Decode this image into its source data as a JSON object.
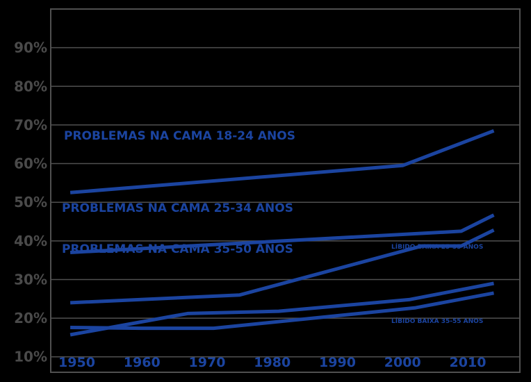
{
  "chart_data": {
    "type": "line",
    "title": "",
    "xlabel": "",
    "ylabel": "",
    "xlim": [
      1946,
      2018
    ],
    "ylim": [
      6,
      100
    ],
    "x_ticks": [
      "1950",
      "1960",
      "1970",
      "1980",
      "1990",
      "2000",
      "2010"
    ],
    "y_ticks": [
      "10%",
      "20%",
      "30%",
      "40%",
      "50%",
      "60%",
      "70%",
      "80%",
      "90%"
    ],
    "grid": true,
    "colors": {
      "background": "#000000",
      "line": "#1b44a0",
      "grid": "#505050",
      "ytick": "#4a4a4a"
    },
    "series": [
      {
        "name": "PROBLEMAS NA CAMA 18-24 ANOS",
        "points": [
          [
            1949,
            52.5
          ],
          [
            2000,
            59.5
          ],
          [
            2014,
            68.5
          ]
        ]
      },
      {
        "name": "PROBLEMAS NA CAMA 25-34 ANOS",
        "points": [
          [
            1949,
            37
          ],
          [
            2009,
            42.5
          ],
          [
            2014,
            46.7
          ]
        ]
      },
      {
        "name": "PROBLEMAS NA CAMA 35-50 ANOS",
        "points": [
          [
            1949,
            24
          ],
          [
            1975,
            26
          ],
          [
            2003,
            38.7
          ],
          [
            2009,
            38.7
          ],
          [
            2014,
            42.8
          ]
        ]
      },
      {
        "name": "LÍBIDO BAIXA 25-35 ANOS",
        "points": [
          [
            1949,
            15.7
          ],
          [
            1967,
            21.2
          ],
          [
            1981,
            21.8
          ],
          [
            2001,
            24.8
          ],
          [
            2014,
            29
          ]
        ]
      },
      {
        "name": "LÍBIDO BAIXA 35-55 ANOS",
        "points": [
          [
            1949,
            17.6
          ],
          [
            1960,
            17.4
          ],
          [
            1971,
            17.4
          ],
          [
            2002,
            22.7
          ],
          [
            2014,
            26.5
          ]
        ]
      }
    ]
  },
  "labels": {
    "label_1824": "PROBLEMAS NA CAMA 18-24 ANOS",
    "label_2534": "PROBLEMAS NA CAMA 25-34 ANOS",
    "label_3550": "PROBLEMAS NA CAMA 35-50 ANOS",
    "libido_upper": "LÍBIDO BAIXA 25-35 ANOS",
    "libido_lower": "LÍBIDO BAIXA 35-55 ANOS"
  }
}
